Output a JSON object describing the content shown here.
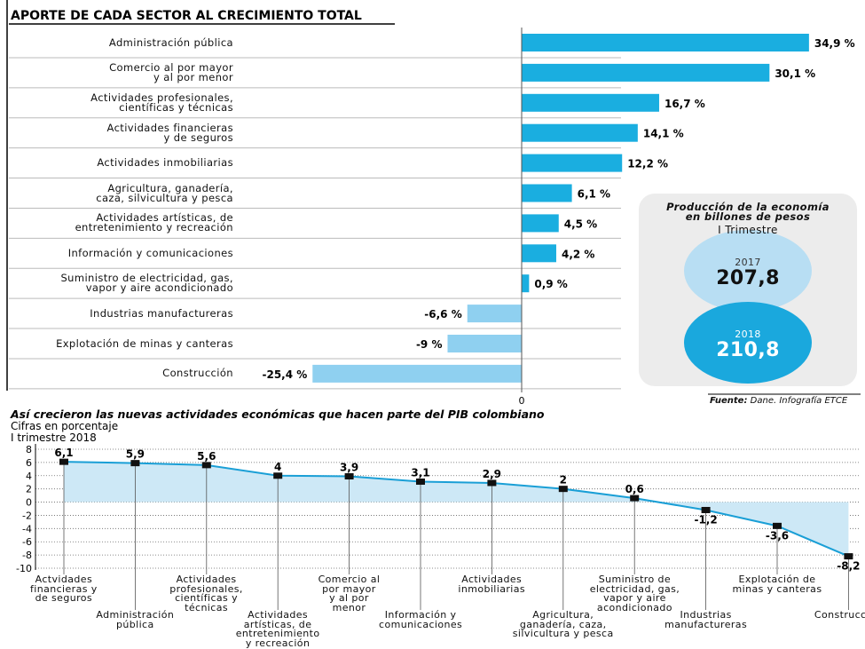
{
  "chart_data": [
    {
      "type": "bar",
      "title": "APORTE DE CADA SECTOR AL CRECIMIENTO TOTAL",
      "categories": [
        "Administración pública",
        "Comercio al por mayor\ny al por menor",
        "Actividades profesionales,\ncientíficas y técnicas",
        "Actividades financieras\ny de seguros",
        "Actividades inmobiliarias",
        "Agricultura, ganadería,\ncaza, silvicultura y pesca",
        "Actividades artísticas, de\nentretenimiento y recreación",
        "Información y comunicaciones",
        "Suministro de electricidad, gas,\nvapor y aire acondicionado",
        "Industrias manufactureras",
        "Explotación de minas y canteras",
        "Construcción"
      ],
      "values": [
        34.9,
        30.1,
        16.7,
        14.1,
        12.2,
        6.1,
        4.5,
        4.2,
        0.9,
        -6.6,
        -9,
        -25.4
      ],
      "value_labels": [
        "34,9 %",
        "30,1 %",
        "16,7 %",
        "14,1 %",
        "12,2 %",
        "6,1 %",
        "4,5 %",
        "4,2 %",
        "0,9 %",
        "-6,6 %",
        "-9 %",
        "-25,4 %"
      ],
      "color": "#1aaee0",
      "negative_color": "#8fd0f0",
      "xlim": [
        -30,
        40
      ],
      "xticks": [
        0
      ]
    },
    {
      "type": "line",
      "title": "Así crecieron las nuevas actividades económicas que hacen parte del PIB colombiano",
      "subtitle": "Cifras en porcentaje",
      "period": "I trimestre 2018",
      "categories": [
        "Actvidades\nfinancieras y\nde seguros",
        "Administración\npública",
        "Actividades\nprofesionales,\ncientíficas y\ntécnicas",
        "Actividades\nartísticas, de\nentretenimiento\ny recreación",
        "Comercio al\npor mayor\ny al por\nmenor",
        "Información y\ncomunicaciones",
        "Actividades\ninmobiliarias",
        "Agricultura,\nganadería, caza,\nsilvicultura y pesca",
        "Suministro de\nelectricidad, gas,\nvapor y aire\nacondicionado",
        "Industrias\nmanufactureras",
        "Explotación de\nminas y canteras",
        "Construcción"
      ],
      "values": [
        6.1,
        5.9,
        5.6,
        4,
        3.9,
        3.1,
        2.9,
        2,
        0.6,
        -1.2,
        -3.6,
        -8.2
      ],
      "value_labels": [
        "6,1",
        "5,9",
        "5,6",
        "4",
        "3,9",
        "3,1",
        "2,9",
        "2",
        "0,6",
        "-1,2",
        "-3,6",
        "-8,2"
      ],
      "color": "#1a9fd6",
      "fill": "#cde8f6",
      "ylim": [
        -10,
        8
      ],
      "yticks": [
        8,
        6,
        4,
        2,
        0,
        -2,
        -4,
        -6,
        -8,
        -10
      ],
      "grid": true
    }
  ],
  "panel": {
    "title": "Producción de la economía\nen billones de pesos",
    "subtitle": "I Trimestre",
    "items": [
      {
        "year": "2017",
        "value": "207,8"
      },
      {
        "year": "2018",
        "value": "210,8"
      }
    ]
  },
  "source": {
    "label": "Fuente:",
    "text": "Dane. Infografía ETCE"
  }
}
